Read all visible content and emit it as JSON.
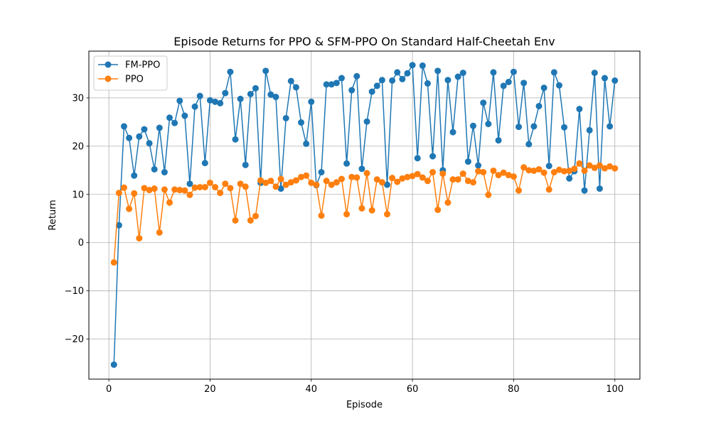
{
  "chart_data": {
    "type": "line",
    "title": "Episode Returns for PPO & SFM-PPO On Standard Half-Cheetah Env",
    "xlabel": "Episode",
    "ylabel": "Return",
    "xlim": [
      -3.95,
      104.95
    ],
    "ylim": [
      -28.3,
      39.7
    ],
    "xticks": [
      0,
      20,
      40,
      60,
      80,
      100
    ],
    "yticks": [
      -20,
      -10,
      0,
      10,
      20,
      30
    ],
    "ytick_labels": [
      "−20",
      "−10",
      "0",
      "10",
      "20",
      "30"
    ],
    "grid": true,
    "legend_position": "upper-left",
    "x": [
      1,
      2,
      3,
      4,
      5,
      6,
      7,
      8,
      9,
      10,
      11,
      12,
      13,
      14,
      15,
      16,
      17,
      18,
      19,
      20,
      21,
      22,
      23,
      24,
      25,
      26,
      27,
      28,
      29,
      30,
      31,
      32,
      33,
      34,
      35,
      36,
      37,
      38,
      39,
      40,
      41,
      42,
      43,
      44,
      45,
      46,
      47,
      48,
      49,
      50,
      51,
      52,
      53,
      54,
      55,
      56,
      57,
      58,
      59,
      60,
      61,
      62,
      63,
      64,
      65,
      66,
      67,
      68,
      69,
      70,
      71,
      72,
      73,
      74,
      75,
      76,
      77,
      78,
      79,
      80,
      81,
      82,
      83,
      84,
      85,
      86,
      87,
      88,
      89,
      90,
      91,
      92,
      93,
      94,
      95,
      96,
      97,
      98,
      99,
      100
    ],
    "series": [
      {
        "name": "FM-PPO",
        "color": "#1f77b4",
        "values": [
          -25.3,
          3.6,
          24.1,
          21.7,
          13.9,
          22.0,
          23.5,
          20.6,
          15.2,
          23.8,
          14.6,
          25.9,
          24.8,
          29.4,
          26.3,
          12.2,
          28.2,
          30.4,
          16.5,
          29.5,
          29.2,
          28.9,
          31.0,
          35.4,
          21.4,
          29.8,
          16.1,
          30.8,
          32.0,
          12.4,
          35.6,
          30.7,
          30.2,
          11.2,
          25.8,
          33.5,
          32.2,
          24.9,
          20.5,
          29.2,
          11.9,
          14.6,
          32.8,
          32.8,
          33.1,
          34.1,
          16.4,
          31.6,
          34.5,
          15.3,
          25.1,
          31.3,
          32.5,
          33.7,
          12.0,
          33.6,
          35.3,
          33.9,
          35.1,
          36.8,
          17.5,
          36.7,
          33.0,
          17.9,
          35.6,
          15.0,
          33.7,
          22.9,
          34.4,
          35.2,
          16.8,
          24.2,
          16.0,
          29.0,
          24.6,
          35.3,
          21.2,
          32.5,
          33.3,
          35.4,
          24.0,
          33.1,
          20.4,
          24.1,
          28.3,
          32.1,
          15.9,
          35.3,
          32.6,
          23.9,
          13.3,
          14.8,
          27.7,
          10.8,
          23.3,
          35.2,
          11.2,
          34.1,
          24.1,
          33.6
        ]
      },
      {
        "name": "PPO",
        "color": "#ff7f0e",
        "values": [
          -4.1,
          10.3,
          11.4,
          7.0,
          10.2,
          0.9,
          11.3,
          10.9,
          11.2,
          2.1,
          11.0,
          8.3,
          11.0,
          10.9,
          10.8,
          9.9,
          11.4,
          11.5,
          11.5,
          12.4,
          11.5,
          10.3,
          12.2,
          11.3,
          4.6,
          12.2,
          11.6,
          4.6,
          5.5,
          12.9,
          12.4,
          12.8,
          11.6,
          13.2,
          12.0,
          12.5,
          12.9,
          13.6,
          13.9,
          12.4,
          12.0,
          5.6,
          12.8,
          12.0,
          12.5,
          13.2,
          5.9,
          13.6,
          13.5,
          7.1,
          14.4,
          6.7,
          13.1,
          12.5,
          5.9,
          13.4,
          12.6,
          13.3,
          13.6,
          13.8,
          14.2,
          13.5,
          12.8,
          14.6,
          6.8,
          14.3,
          8.3,
          13.1,
          13.1,
          14.3,
          12.8,
          12.5,
          14.8,
          14.6,
          9.9,
          14.9,
          14.0,
          14.5,
          14.0,
          13.7,
          10.8,
          15.6,
          15.0,
          14.9,
          15.2,
          14.5,
          11.0,
          14.6,
          15.1,
          14.8,
          14.9,
          15.3,
          16.4,
          14.9,
          16.0,
          15.5,
          16.0,
          15.4,
          15.8,
          15.4
        ]
      }
    ]
  }
}
